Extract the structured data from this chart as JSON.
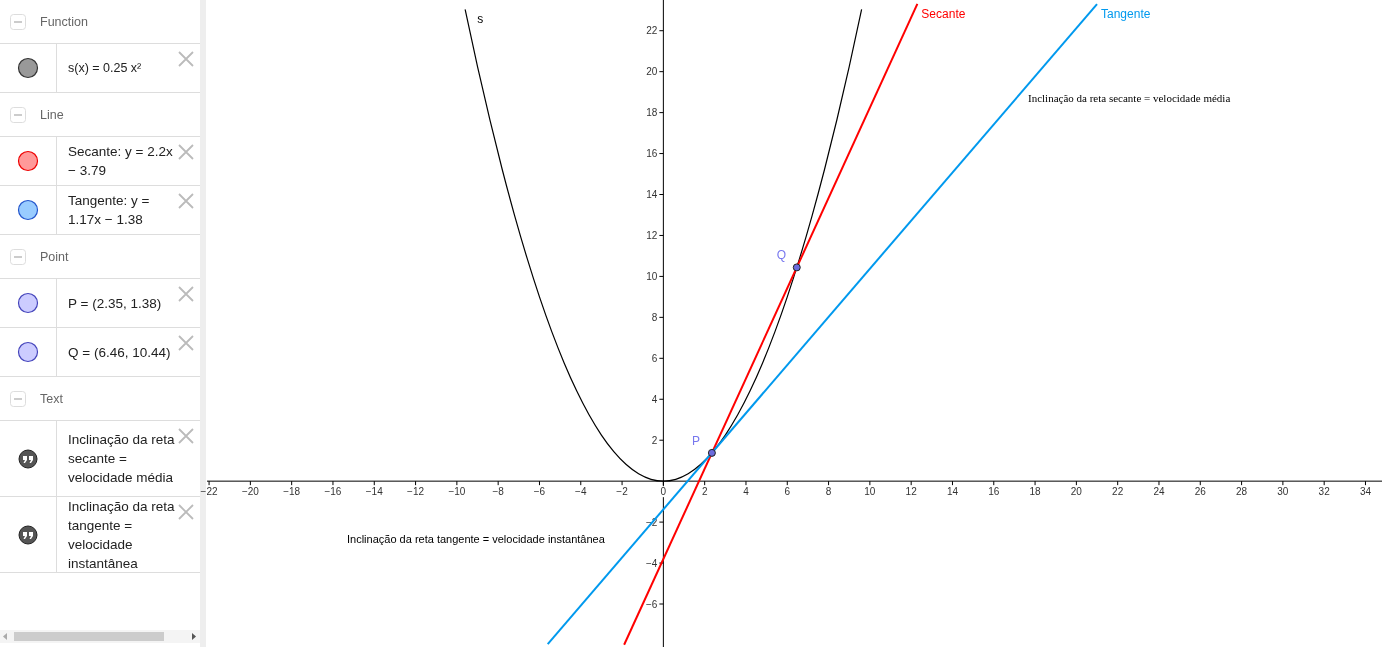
{
  "chart_data": [
    {
      "type": "other",
      "annotations": [
        "Function",
        "s(x) = 0.25 x²",
        "Line",
        "Secante: y = 2.2x − 3.79",
        "Tangente: y = 1.17x − 1.38",
        "Point",
        "P = (2.35, 1.38)",
        "Q = (6.46, 10.44)",
        "Text",
        "Inclinação da reta secante = velocidade média",
        "Inclinação da reta tangente = velocidade instantânea"
      ]
    },
    {
      "type": "line",
      "xlim": [
        -22.1,
        34.8
      ],
      "ylim": [
        -8.1,
        23.5
      ],
      "xticks": [
        -22,
        -20,
        -18,
        -16,
        -14,
        -12,
        -10,
        -8,
        -6,
        -4,
        -2,
        0,
        2,
        4,
        6,
        8,
        10,
        12,
        14,
        16,
        18,
        20,
        22,
        24,
        26,
        28,
        30,
        32,
        34
      ],
      "yticks": [
        -6,
        -4,
        -2,
        2,
        4,
        6,
        8,
        10,
        12,
        14,
        16,
        18,
        20,
        22
      ],
      "series": [
        {
          "name": "s",
          "color": "#000000",
          "x": [
            -9.6,
            -9,
            -8.4,
            -7.8,
            -7.2,
            -6.6,
            -6,
            -5.4,
            -4.8,
            -4.2,
            -3.6,
            -3,
            -2.4,
            -1.8,
            -1.2,
            -0.6,
            0,
            0.6,
            1.2,
            1.8,
            2.4,
            3,
            3.6,
            4.2,
            4.8,
            5.4,
            6,
            6.6,
            7.2,
            7.8,
            8.4,
            9,
            9.6
          ],
          "values": [
            23.04,
            20.25,
            17.64,
            15.21,
            12.96,
            10.89,
            9,
            7.29,
            5.76,
            4.41,
            3.24,
            2.25,
            1.44,
            0.81,
            0.36,
            0.09,
            0,
            0.09,
            0.36,
            0.81,
            1.44,
            2.25,
            3.24,
            4.41,
            5.76,
            7.29,
            9,
            10.89,
            12.96,
            15.21,
            17.64,
            20.25,
            23.04
          ]
        },
        {
          "name": "Secante",
          "color": "#ff0000",
          "x": [
            -1.9,
            12.3
          ],
          "values": [
            -7.99,
            23.31
          ]
        },
        {
          "name": "Tangente",
          "color": "#0099ee",
          "x": [
            -5.6,
            21
          ],
          "values": [
            -7.96,
            23.3
          ]
        },
        {
          "name": "P",
          "type": "scatter",
          "marker": "circle",
          "color": "#6b6bdd",
          "x": [
            2.35
          ],
          "values": [
            1.38
          ]
        },
        {
          "name": "Q",
          "type": "scatter",
          "marker": "circle",
          "color": "#6b6bdd",
          "x": [
            6.46
          ],
          "values": [
            10.44
          ]
        }
      ],
      "annotations": [
        "Inclinação da reta secante = velocidade média",
        "Inclinação da reta tangente = velocidade instantânea"
      ]
    }
  ]
}
